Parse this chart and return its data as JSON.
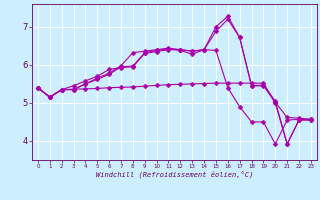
{
  "xlabel": "Windchill (Refroidissement éolien,°C)",
  "background_color": "#cceeff",
  "grid_color": "#ffffff",
  "line_color": "#aa00aa",
  "markersize": 2.5,
  "linewidth": 0.8,
  "ylim": [
    3.5,
    7.6
  ],
  "xlim": [
    -0.5,
    23.5
  ],
  "yticks": [
    4,
    5,
    6,
    7
  ],
  "xticks": [
    0,
    1,
    2,
    3,
    4,
    5,
    6,
    7,
    8,
    9,
    10,
    11,
    12,
    13,
    14,
    15,
    16,
    17,
    18,
    19,
    20,
    21,
    22,
    23
  ],
  "series": [
    [
      5.4,
      5.15,
      5.35,
      5.36,
      5.37,
      5.38,
      5.4,
      5.41,
      5.42,
      5.44,
      5.46,
      5.48,
      5.49,
      5.5,
      5.51,
      5.52,
      5.52,
      5.52,
      5.52,
      5.52,
      5.02,
      4.62,
      4.6,
      4.57
    ],
    [
      5.4,
      5.15,
      5.35,
      5.45,
      5.58,
      5.7,
      5.88,
      5.93,
      5.95,
      6.3,
      6.35,
      6.4,
      6.4,
      6.36,
      6.4,
      6.38,
      5.4,
      4.9,
      4.5,
      4.5,
      3.92,
      4.55,
      4.57,
      4.55
    ],
    [
      5.4,
      5.15,
      5.35,
      5.35,
      5.5,
      5.62,
      5.75,
      5.95,
      5.97,
      6.32,
      6.38,
      6.42,
      6.38,
      6.28,
      6.4,
      6.88,
      7.2,
      6.72,
      5.45,
      5.45,
      5.05,
      3.92,
      4.55,
      4.55
    ],
    [
      5.4,
      5.15,
      5.35,
      5.35,
      5.5,
      5.65,
      5.78,
      5.98,
      6.32,
      6.36,
      6.4,
      6.44,
      6.4,
      6.36,
      6.4,
      7.0,
      7.28,
      6.72,
      5.45,
      5.47,
      5.0,
      3.92,
      4.55,
      4.57
    ]
  ]
}
